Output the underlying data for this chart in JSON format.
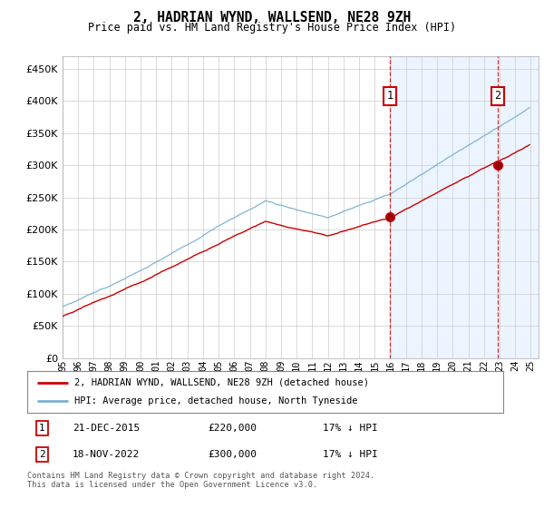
{
  "title": "2, HADRIAN WYND, WALLSEND, NE28 9ZH",
  "subtitle": "Price paid vs. HM Land Registry's House Price Index (HPI)",
  "ylim": [
    0,
    470000
  ],
  "yticks": [
    0,
    50000,
    100000,
    150000,
    200000,
    250000,
    300000,
    350000,
    400000,
    450000
  ],
  "xlim_start": 1995.0,
  "xlim_end": 2025.5,
  "marker1_x": 2015.97,
  "marker1_y": 220000,
  "marker2_x": 2022.88,
  "marker2_y": 300000,
  "legend_line1": "2, HADRIAN WYND, WALLSEND, NE28 9ZH (detached house)",
  "legend_line2": "HPI: Average price, detached house, North Tyneside",
  "footnote": "Contains HM Land Registry data © Crown copyright and database right 2024.\nThis data is licensed under the Open Government Licence v3.0.",
  "hpi_color": "#7ab0d4",
  "price_color": "#cc0000",
  "vline_color": "#cc0000",
  "shade_color": "#ddeeff",
  "background_color": "#ffffff",
  "grid_color": "#cccccc",
  "box_color": "#cc0000"
}
